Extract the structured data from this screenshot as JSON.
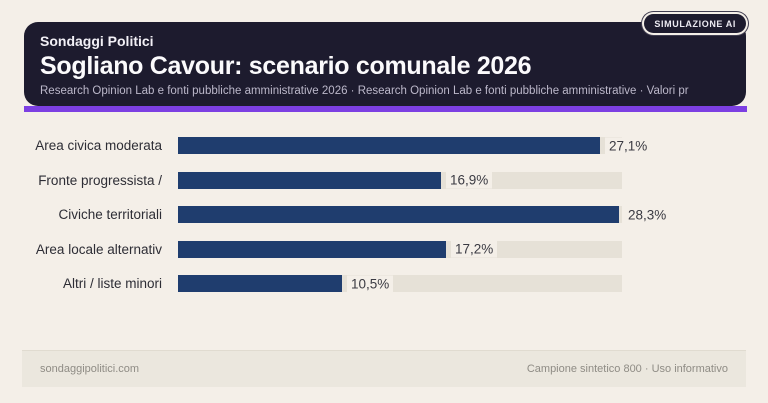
{
  "badge": {
    "label": "SIMULAZIONE AI"
  },
  "header": {
    "kicker": "Sondaggi Politici",
    "title": "Sogliano Cavour: scenario comunale 2026",
    "subtitle": "Research Opinion Lab e fonti pubbliche amministrative 2026 · Research Opinion Lab e fonti pubbliche amministrative · Valori pr"
  },
  "chart_data": {
    "type": "bar",
    "orientation": "horizontal",
    "title": "Sogliano Cavour: scenario comunale 2026",
    "categories": [
      "Area civica moderata",
      "Fronte progressista /",
      "Civiche territoriali",
      "Area locale alternativ",
      "Altri / liste minori"
    ],
    "values": [
      27.1,
      16.9,
      28.3,
      17.2,
      10.5
    ],
    "value_labels": [
      "27,1%",
      "16,9%",
      "28,3%",
      "17,2%",
      "10,5%"
    ],
    "xlim": [
      0,
      28.5
    ],
    "grid": false,
    "legend": false,
    "bar_color": "#1f3d6e",
    "track_color": "#e6e1d7"
  },
  "footer": {
    "left": "sondaggipolitici.com",
    "right": "Campione sintetico 800 · Uso informativo"
  },
  "colors": {
    "page_bg": "#f4efe8",
    "header_bg": "#1d1b2e",
    "accent_purple": "#7c3fe2"
  }
}
